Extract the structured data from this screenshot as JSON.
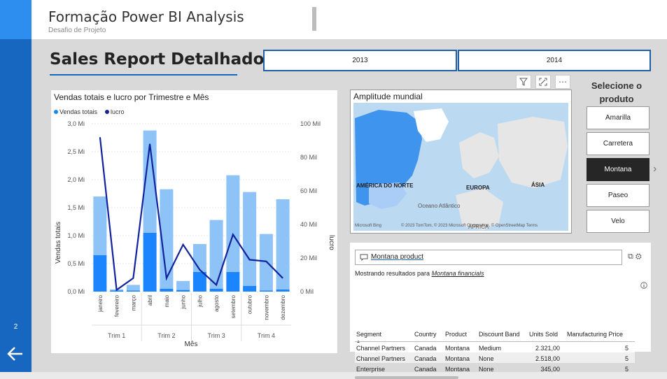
{
  "app": {
    "title": "Formação Power BI Analysis",
    "subtitle": "Desafio de Projeto",
    "page_number": "2"
  },
  "colors": {
    "accent": "#1766c0",
    "bar_light": "#8ec3f7",
    "bar_dark": "#1a85ff",
    "line": "#12239e"
  },
  "report": {
    "title": "Sales Report Detalhado"
  },
  "years": [
    "2013",
    "2014"
  ],
  "chart_data": {
    "type": "combo-bar-line",
    "title": "Vendas totais e lucro por Trimestre e Mês",
    "legend": [
      "Vendas totais",
      "lucro"
    ],
    "legend_position": "top-left",
    "xlabel": "Mês",
    "ylabel_left": "Vendas totais",
    "ylabel_right": "lucro",
    "ylim_left": [
      0,
      3.0
    ],
    "ylim_right": [
      0,
      100
    ],
    "yticks_left": [
      "0,0 Mi",
      "0,5 Mi",
      "1,0 Mi",
      "1,5 Mi",
      "2,0 Mi",
      "2,5 Mi",
      "3,0 Mi"
    ],
    "yticks_right": [
      "0 Mil",
      "20 Mil",
      "40 Mil",
      "60 Mil",
      "80 Mil",
      "100 Mil"
    ],
    "categories": [
      "janeiro",
      "fevereiro",
      "março",
      "abril",
      "maio",
      "junho",
      "julho",
      "agosto",
      "setembro",
      "outubro",
      "novembro",
      "dezembro"
    ],
    "quarters": [
      "Trim 1",
      "Trim 2",
      "Trim 3",
      "Trim 4"
    ],
    "series": [
      {
        "name": "Vendas totais",
        "segments_by_year": {
          "2013": [
            0.65,
            0.02,
            0.02,
            1.05,
            0.05,
            0.03,
            0.35,
            0.05,
            0.35,
            0.1,
            0.02,
            0.04
          ],
          "2014": [
            1.05,
            0.02,
            0.1,
            1.83,
            1.78,
            0.16,
            0.5,
            1.23,
            1.73,
            1.68,
            1.01,
            1.61
          ]
        }
      },
      {
        "name": "lucro",
        "values": [
          92,
          1,
          8,
          88,
          8,
          28,
          13,
          4,
          34,
          19,
          18,
          8
        ]
      }
    ]
  },
  "map": {
    "title": "Amplitude mundial",
    "labels": [
      "AMÉRICA DO NORTE",
      "EUROPA",
      "ÁSIA",
      "Oceano Atlântico",
      "ÁFRICA"
    ],
    "brand": "Microsoft Bing",
    "attribution": "© 2023 TomTom, © 2023 Microsoft Corporation, © OpenStreetMap Terms"
  },
  "slicer": {
    "title": "Selecione o produto",
    "items": [
      "Amarilla",
      "Carretera",
      "Montana",
      "Paseo",
      "Velo"
    ],
    "selected": "Montana"
  },
  "qa": {
    "query": "Montana product",
    "result_prefix": "Mostrando resultados para ",
    "result_link": "Montana financials",
    "columns": [
      "Segment",
      "Country",
      "Product",
      "Discount Band",
      "Units Sold",
      "Manufacturing Price"
    ],
    "rows": [
      [
        "Channel Partners",
        "Canada",
        "Montana",
        "Medium",
        "2.321,00",
        "5"
      ],
      [
        "Channel Partners",
        "Canada",
        "Montana",
        "None",
        "2.518,00",
        "5"
      ],
      [
        "Enterprise",
        "Canada",
        "Montana",
        "None",
        "345,00",
        "5"
      ]
    ]
  }
}
